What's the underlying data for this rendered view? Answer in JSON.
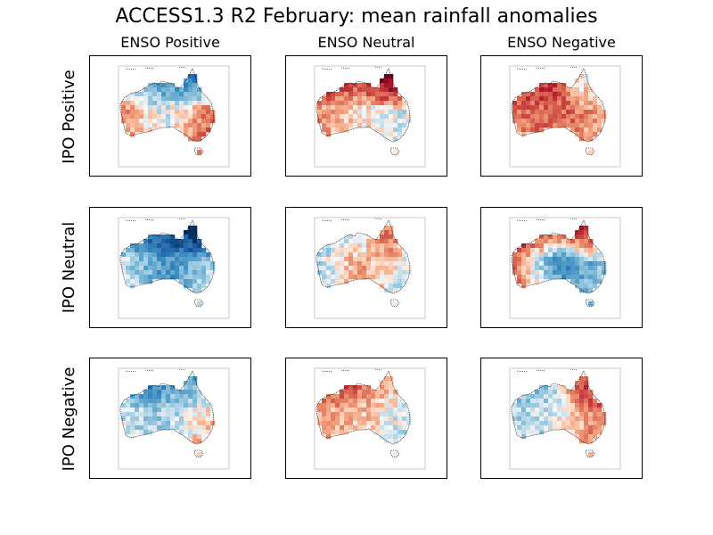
{
  "chart_data": {
    "type": "heatmap",
    "title": "ACCESS1.3 R2 February: mean rainfall anomalies",
    "columns": [
      "ENSO Positive",
      "ENSO Neutral",
      "ENSO Negative"
    ],
    "rows": [
      "IPO Positive",
      "IPO Neutral",
      "IPO Negative"
    ],
    "colormap": "RdBu (red = drier, blue = wetter)",
    "panels": [
      {
        "row": "IPO Positive",
        "column": "ENSO Positive",
        "north_wet": 0.85,
        "east_wet": -0.55,
        "west_wet": -0.4,
        "center_wet": 0.2,
        "northeast_wet": 0.6
      },
      {
        "row": "IPO Positive",
        "column": "ENSO Neutral",
        "north_wet": -0.9,
        "east_wet": 0.1,
        "west_wet": -0.35,
        "center_wet": -0.1,
        "northeast_wet": -0.95
      },
      {
        "row": "IPO Positive",
        "column": "ENSO Negative",
        "north_wet": -0.75,
        "east_wet": -0.3,
        "west_wet": -0.5,
        "center_wet": -0.55,
        "northeast_wet": 0.5
      },
      {
        "row": "IPO Neutral",
        "column": "ENSO Positive",
        "north_wet": 0.95,
        "east_wet": 0.2,
        "west_wet": 0.15,
        "center_wet": 0.6,
        "northeast_wet": 0.9
      },
      {
        "row": "IPO Neutral",
        "column": "ENSO Neutral",
        "north_wet": 0.25,
        "east_wet": 0.1,
        "west_wet": 0.2,
        "center_wet": -0.35,
        "northeast_wet": -0.85
      },
      {
        "row": "IPO Neutral",
        "column": "ENSO Negative",
        "north_wet": -0.85,
        "east_wet": 0.35,
        "west_wet": -0.45,
        "center_wet": 0.55,
        "northeast_wet": -0.6
      },
      {
        "row": "IPO Negative",
        "column": "ENSO Positive",
        "north_wet": 0.75,
        "east_wet": -0.2,
        "west_wet": 0.15,
        "center_wet": 0.3,
        "northeast_wet": 0.2
      },
      {
        "row": "IPO Negative",
        "column": "ENSO Neutral",
        "north_wet": -0.7,
        "east_wet": 0.15,
        "west_wet": -0.3,
        "center_wet": -0.25,
        "northeast_wet": 0.1
      },
      {
        "row": "IPO Negative",
        "column": "ENSO Negative",
        "north_wet": 0.35,
        "east_wet": -0.5,
        "west_wet": 0.2,
        "center_wet": 0.1,
        "northeast_wet": -0.95
      }
    ]
  }
}
